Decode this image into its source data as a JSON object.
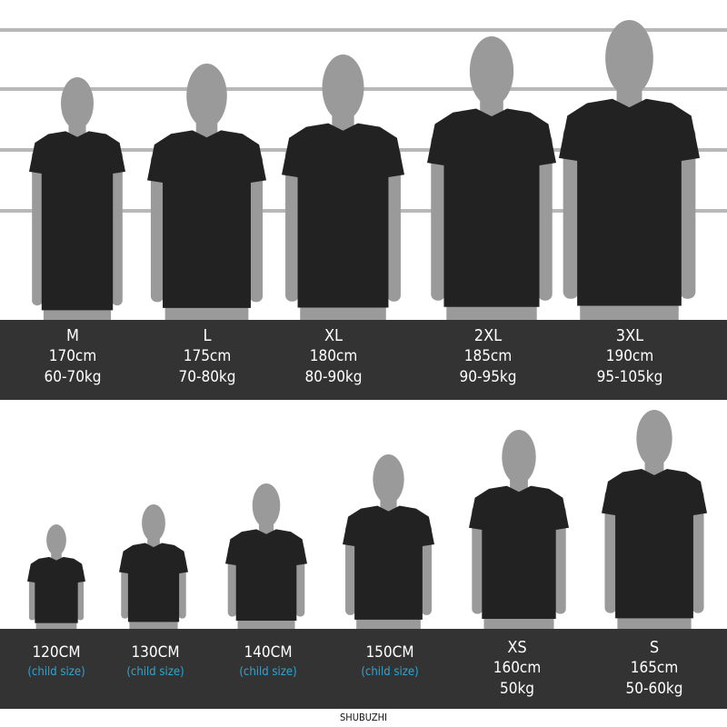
{
  "colors": {
    "band": "#333333",
    "shirt": "#222222",
    "skin": "#9a9a9a",
    "child_label": "#2aa6d8",
    "line": "#b8b8b8"
  },
  "adult_sizes": [
    {
      "size": "M",
      "height": "170cm",
      "weight": "60-70kg"
    },
    {
      "size": "L",
      "height": "175cm",
      "weight": "70-80kg"
    },
    {
      "size": "XL",
      "height": "180cm",
      "weight": "80-90kg"
    },
    {
      "size": "2XL",
      "height": "185cm",
      "weight": "90-95kg"
    },
    {
      "size": "3XL",
      "height": "190cm",
      "weight": "95-105kg"
    }
  ],
  "small_sizes": [
    {
      "size": "120CM",
      "note": "(child size)"
    },
    {
      "size": "130CM",
      "note": "(child size)"
    },
    {
      "size": "140CM",
      "note": "(child size)"
    },
    {
      "size": "150CM",
      "note": "(child size)"
    },
    {
      "size": "XS",
      "height": "160cm",
      "weight": "50kg"
    },
    {
      "size": "S",
      "height": "165cm",
      "weight": "50-60kg"
    }
  ],
  "brand": "SHUBUZHI"
}
